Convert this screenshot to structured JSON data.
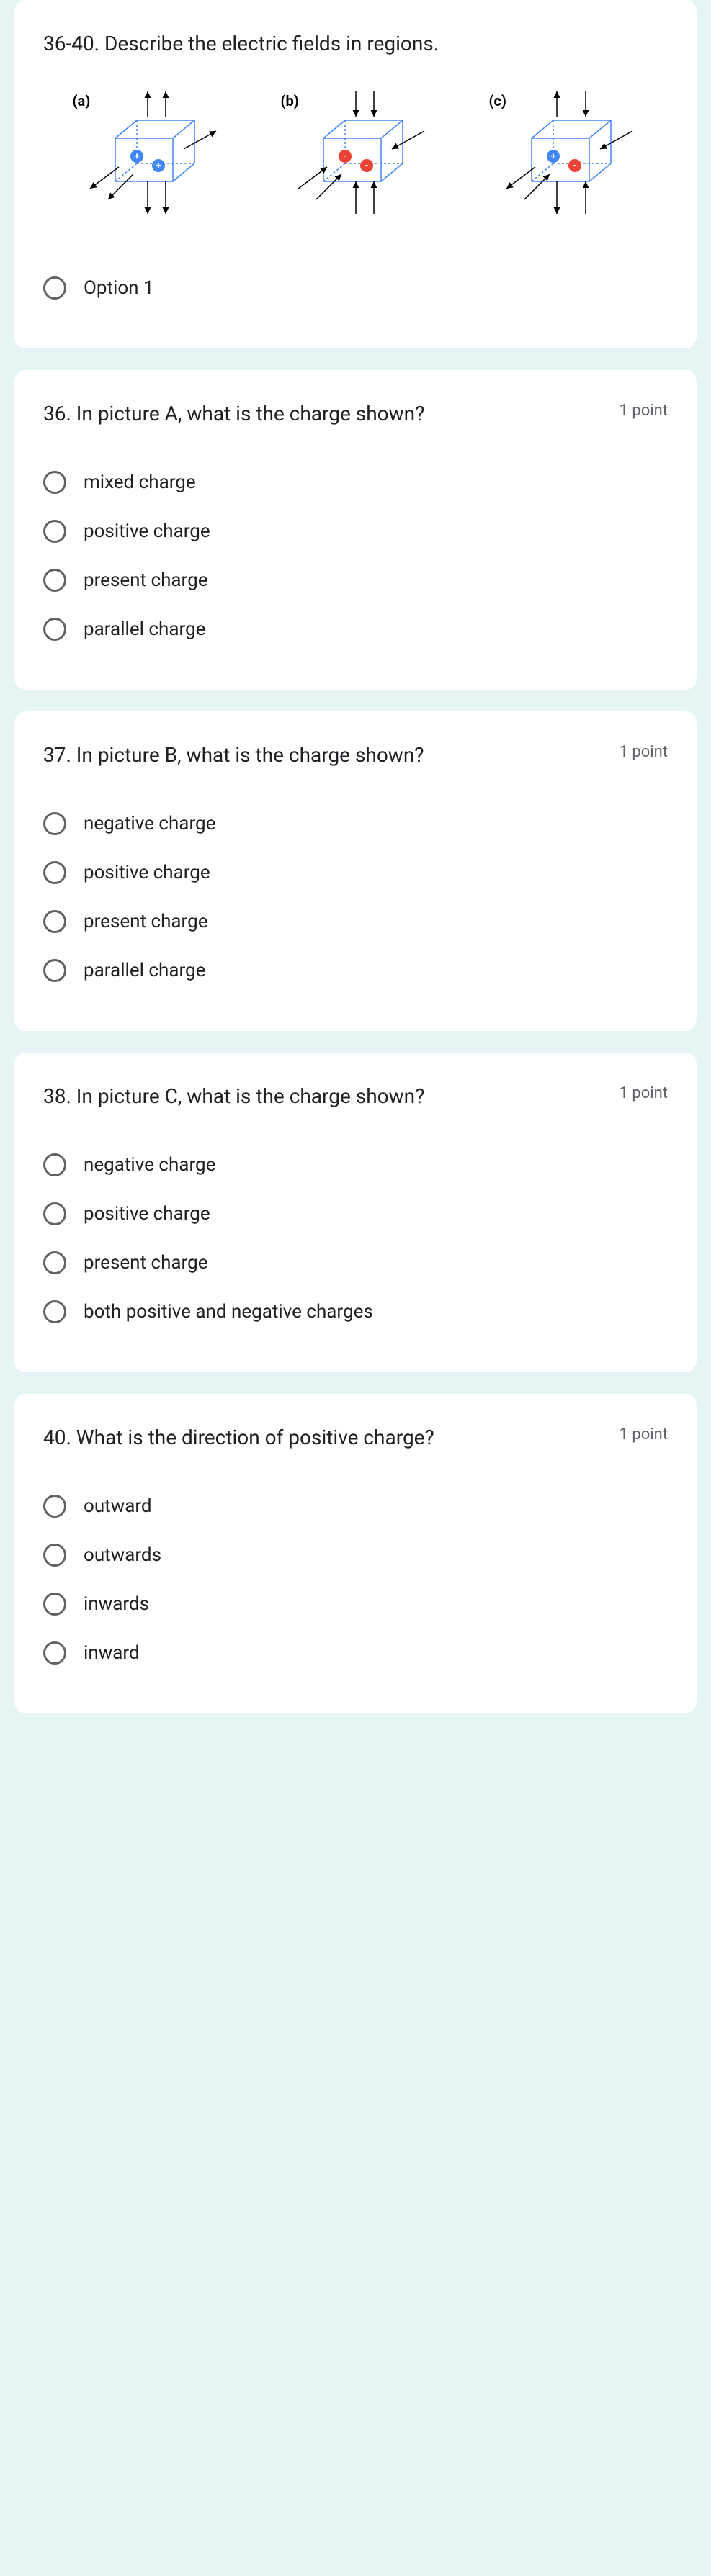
{
  "intro": {
    "title": "36-40. Describe the electric fields in regions.",
    "option1": "Option 1",
    "diagrams": [
      {
        "label": "(a)",
        "charges": [
          {
            "sign": "+",
            "color": "#4285f4"
          },
          {
            "sign": "+",
            "color": "#4285f4"
          }
        ],
        "arrows": "out"
      },
      {
        "label": "(b)",
        "charges": [
          {
            "sign": "-",
            "color": "#ea4335"
          },
          {
            "sign": "-",
            "color": "#ea4335"
          }
        ],
        "arrows": "in"
      },
      {
        "label": "(c)",
        "charges": [
          {
            "sign": "+",
            "color": "#4285f4"
          },
          {
            "sign": "-",
            "color": "#ea4335"
          }
        ],
        "arrows": "mixed"
      }
    ]
  },
  "questions": [
    {
      "title": "36. In picture A, what is the charge shown?",
      "points": "1 point",
      "options": [
        "mixed charge",
        "positive charge",
        "present charge",
        "parallel charge"
      ]
    },
    {
      "title": "37. In picture B, what is the charge shown?",
      "points": "1 point",
      "options": [
        "negative charge",
        "positive charge",
        "present charge",
        "parallel charge"
      ]
    },
    {
      "title": "38. In picture C, what is the charge shown?",
      "points": "1 point",
      "options": [
        "negative charge",
        "positive charge",
        "present charge",
        "both positive and negative charges"
      ]
    },
    {
      "title": "40. What is the direction of positive charge?",
      "points": "1 point",
      "options": [
        "outward",
        "outwards",
        "inwards",
        "inward"
      ]
    }
  ],
  "style": {
    "cube_stroke": "#4285f4",
    "arrow_stroke": "#000000"
  }
}
